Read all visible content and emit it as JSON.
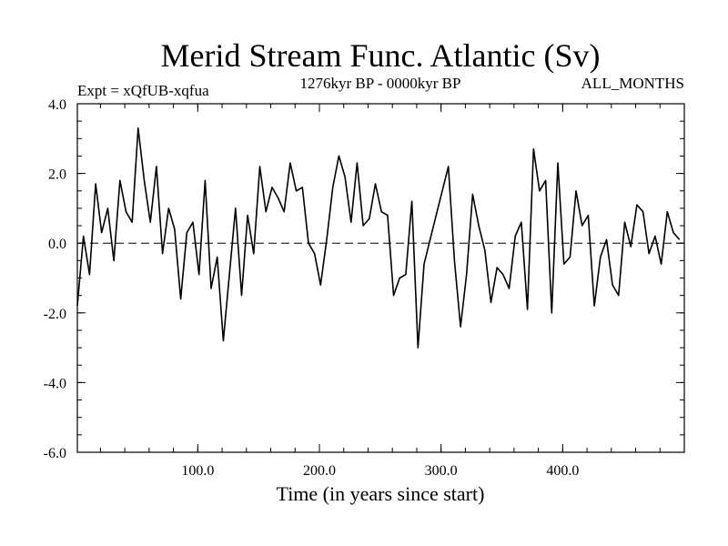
{
  "chart_data": {
    "type": "line",
    "title": "Merid Stream Func. Atlantic (Sv)",
    "subtitle_left": "Expt = xQfUB-xqfua",
    "subtitle_center": "1276kyr BP - 0000kyr BP",
    "subtitle_right": "ALL_MONTHS",
    "xlabel": "Time (in years since start)",
    "ylabel": "",
    "xlim": [
      1,
      500
    ],
    "ylim": [
      -6.0,
      4.0
    ],
    "x_ticks": [
      100,
      200,
      300,
      400
    ],
    "x_tick_labels": [
      "100.0",
      "200.0",
      "300.0",
      "400.0"
    ],
    "y_ticks": [
      -6,
      -4,
      -2,
      0,
      2,
      4
    ],
    "y_tick_labels": [
      "-6.0",
      "-4.0",
      "-2.0",
      "0.0",
      "2.0",
      "4.0"
    ],
    "reference_line": 0.0,
    "series": [
      {
        "name": "Merid Stream Func. Atlantic",
        "x_start": 1,
        "x_step": 5,
        "values": [
          -1.8,
          0.2,
          -0.9,
          1.7,
          0.3,
          1.0,
          -0.5,
          1.8,
          0.9,
          0.6,
          3.3,
          1.8,
          0.6,
          2.2,
          -0.3,
          1.0,
          0.4,
          -1.6,
          0.3,
          0.6,
          -0.9,
          1.8,
          -1.3,
          -0.4,
          -2.8,
          -0.9,
          1.0,
          -1.5,
          0.8,
          -0.3,
          2.2,
          0.9,
          1.6,
          1.3,
          0.9,
          2.3,
          1.5,
          1.6,
          0.0,
          -0.3,
          -1.2,
          0.1,
          1.6,
          2.5,
          1.9,
          0.6,
          2.3,
          0.5,
          0.7,
          1.7,
          0.9,
          0.8,
          -1.5,
          -1.0,
          -0.9,
          1.2,
          -3.0,
          -0.6,
          0.1,
          0.8,
          1.5,
          2.2,
          -0.5,
          -2.4,
          -0.9,
          1.4,
          0.5,
          -0.2,
          -1.7,
          -0.7,
          -0.9,
          -1.3,
          0.2,
          0.6,
          -1.9,
          2.7,
          1.5,
          1.8,
          -2.0,
          2.3,
          -0.6,
          -0.4,
          1.5,
          0.5,
          0.8,
          -1.8,
          -0.4,
          0.1,
          -1.2,
          -1.5,
          0.6,
          -0.1,
          1.1,
          0.9,
          -0.3,
          0.2,
          -0.6,
          0.9,
          0.3,
          0.1
        ]
      }
    ]
  }
}
